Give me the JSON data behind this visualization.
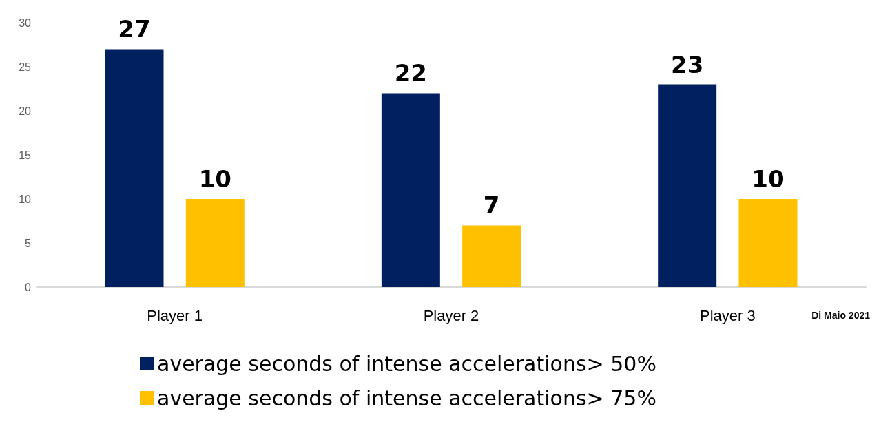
{
  "chart_data": {
    "type": "bar",
    "categories": [
      "Player 1",
      "Player 2",
      "Player 3"
    ],
    "series": [
      {
        "name": "average seconds of intense accelerations> 50%",
        "color": "#002060",
        "values": [
          27,
          22,
          23
        ]
      },
      {
        "name": "average seconds of intense accelerations> 75%",
        "color": "#ffc000",
        "values": [
          10,
          7,
          10
        ]
      }
    ],
    "ylim": [
      0,
      30
    ],
    "yticks": [
      0,
      5,
      10,
      15,
      20,
      25,
      30
    ],
    "grid": false,
    "legend": "bottom",
    "data_labels": true,
    "annotations": [
      "Di Maio 2021"
    ]
  }
}
